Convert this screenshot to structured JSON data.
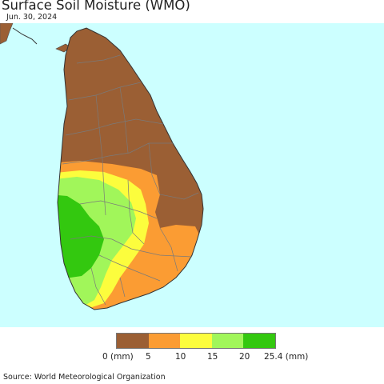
{
  "title": "Surface Soil Moisture (WMO)",
  "date": "Jun. 30, 2024",
  "legend": {
    "colors": [
      "#9b5f34",
      "#fb9c33",
      "#fcfd3d",
      "#a1f65a",
      "#33c80f"
    ],
    "labels": [
      "0 (mm)",
      "5",
      "10",
      "15",
      "20",
      "25.4 (mm)"
    ]
  },
  "source": "Source: World Meteorological Organization",
  "colors": {
    "sea": "#ccffff",
    "land_outside": "#ffffff",
    "borders": "#7a7a7a"
  }
}
